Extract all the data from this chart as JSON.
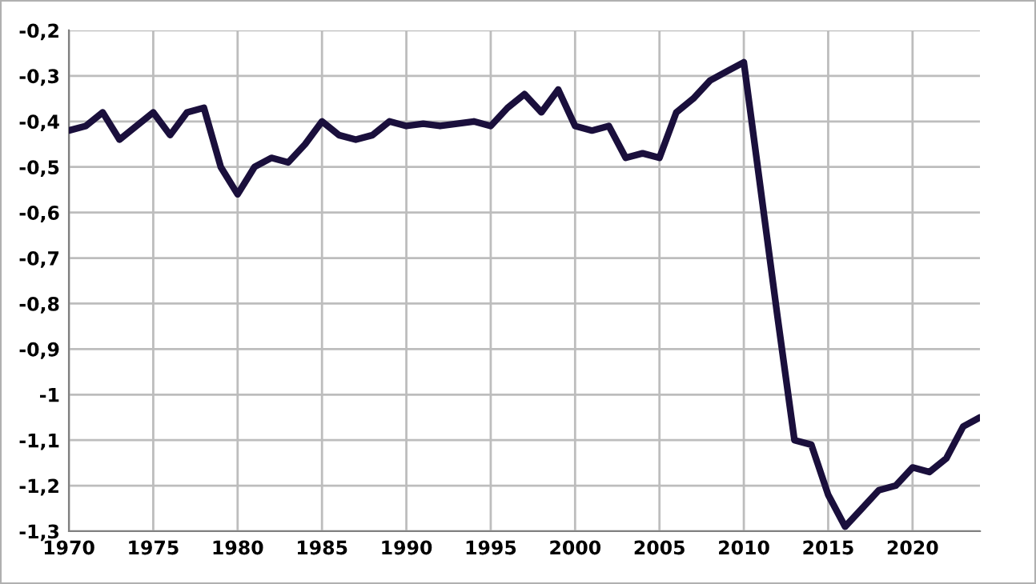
{
  "chart_data": {
    "type": "line",
    "x": [
      1970,
      1971,
      1972,
      1973,
      1974,
      1975,
      1976,
      1977,
      1978,
      1979,
      1980,
      1981,
      1982,
      1983,
      1984,
      1985,
      1986,
      1987,
      1988,
      1989,
      1990,
      1991,
      1992,
      1993,
      1994,
      1995,
      1996,
      1997,
      1998,
      1999,
      2000,
      2001,
      2002,
      2003,
      2004,
      2005,
      2006,
      2007,
      2008,
      2009,
      2010,
      2011,
      2012,
      2013,
      2014,
      2015,
      2016,
      2017,
      2018,
      2019,
      2020,
      2021,
      2022,
      2023,
      2024
    ],
    "series": [
      {
        "color": "#1a0f3c",
        "values": [
          -0.42,
          -0.41,
          -0.38,
          -0.44,
          -0.41,
          -0.38,
          -0.43,
          -0.38,
          -0.37,
          -0.5,
          -0.56,
          -0.5,
          -0.48,
          -0.49,
          -0.45,
          -0.4,
          -0.43,
          -0.44,
          -0.43,
          -0.4,
          -0.41,
          -0.405,
          -0.41,
          -0.405,
          -0.4,
          -0.41,
          -0.37,
          -0.34,
          -0.38,
          -0.33,
          -0.41,
          -0.42,
          -0.41,
          -0.48,
          -0.47,
          -0.48,
          -0.38,
          -0.35,
          -0.31,
          -0.29,
          -0.27,
          -0.55,
          -0.83,
          -1.1,
          -1.11,
          -1.22,
          -1.29,
          -1.25,
          -1.21,
          -1.2,
          -1.16,
          -1.17,
          -1.14,
          -1.07,
          -1.05
        ]
      }
    ],
    "xlim": [
      1970,
      2024
    ],
    "xticks": [
      1970,
      1975,
      1980,
      1985,
      1990,
      1995,
      2000,
      2005,
      2010,
      2015,
      2020
    ],
    "ylim": [
      -1.3,
      -0.2
    ],
    "yticks": [
      {
        "value": -1.3,
        "label": "-1,3"
      },
      {
        "value": -1.2,
        "label": "-1,2"
      },
      {
        "value": -1.1,
        "label": "-1,1"
      },
      {
        "value": -1.0,
        "label": "-1"
      },
      {
        "value": -0.9,
        "label": "-0,9"
      },
      {
        "value": -0.8,
        "label": "-0,8"
      },
      {
        "value": -0.7,
        "label": "-0,7"
      },
      {
        "value": -0.6,
        "label": "-0,6"
      },
      {
        "value": -0.5,
        "label": "-0,5"
      },
      {
        "value": -0.4,
        "label": "-0,4"
      },
      {
        "value": -0.3,
        "label": "-0,3"
      },
      {
        "value": -0.2,
        "label": "-0,2"
      }
    ],
    "grid": true,
    "line_style": "solid"
  }
}
